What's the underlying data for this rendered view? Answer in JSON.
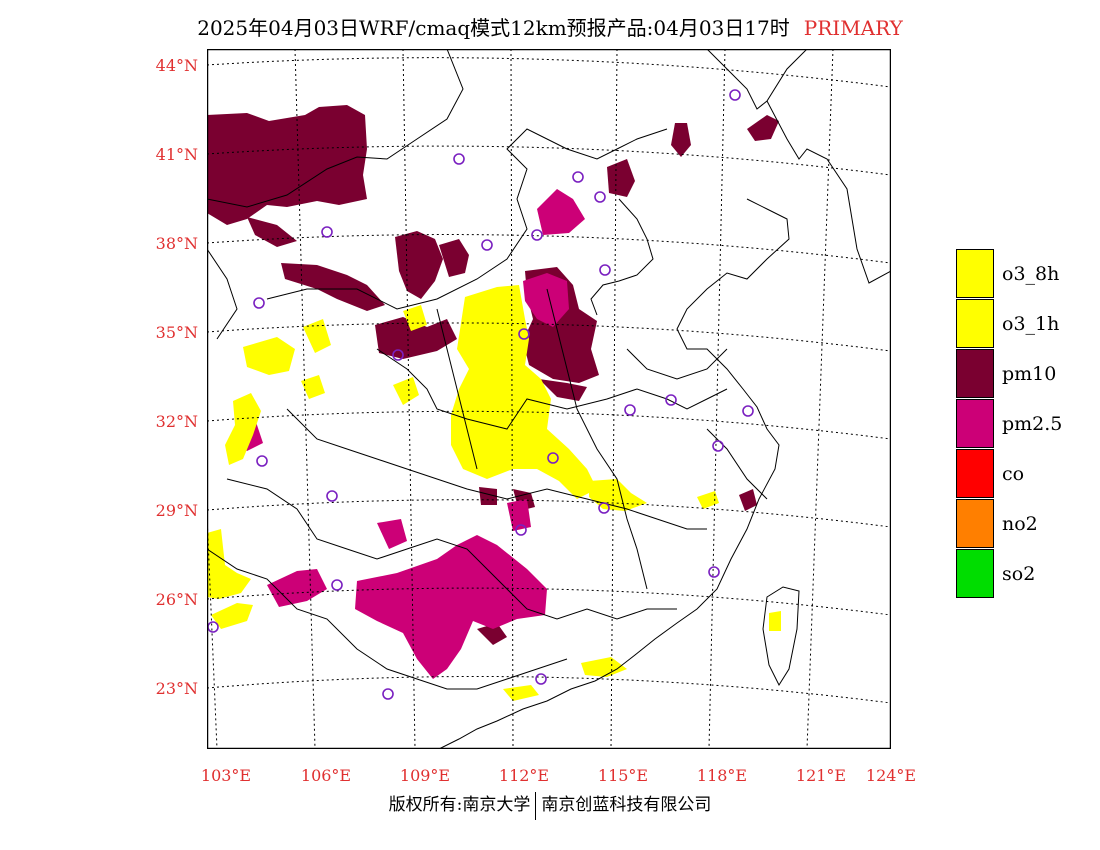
{
  "header": {
    "title": "2025年04月03日WRF/cmaq模式12km预报产品:04月03日17时",
    "tag": "PRIMARY",
    "tag_color": "#e03030"
  },
  "axes": {
    "lat_labels": [
      "44°N",
      "41°N",
      "38°N",
      "35°N",
      "32°N",
      "29°N",
      "26°N",
      "23°N"
    ],
    "lon_labels": [
      "103°E",
      "106°E",
      "109°E",
      "112°E",
      "115°E",
      "118°E",
      "121°E",
      "124°E"
    ],
    "label_color": "#e03030"
  },
  "legend": {
    "items": [
      {
        "label": "o3_8h",
        "color": "#ffff00"
      },
      {
        "label": "o3_1h",
        "color": "#ffff00"
      },
      {
        "label": "pm10",
        "color": "#7a0030"
      },
      {
        "label": "pm2.5",
        "color": "#cc0077"
      },
      {
        "label": "co",
        "color": "#ff0000"
      },
      {
        "label": "no2",
        "color": "#ff7f00"
      },
      {
        "label": "so2",
        "color": "#00dd00"
      }
    ]
  },
  "map": {
    "colors": {
      "pm10": "#7a0030",
      "pm25": "#cc0077",
      "o3": "#ffff00",
      "station": "#7a20c0",
      "boundary": "#000000",
      "grid": "#000000"
    }
  },
  "footer": {
    "left": "版权所有:南京大学",
    "right": "南京创蓝科技有限公司"
  }
}
